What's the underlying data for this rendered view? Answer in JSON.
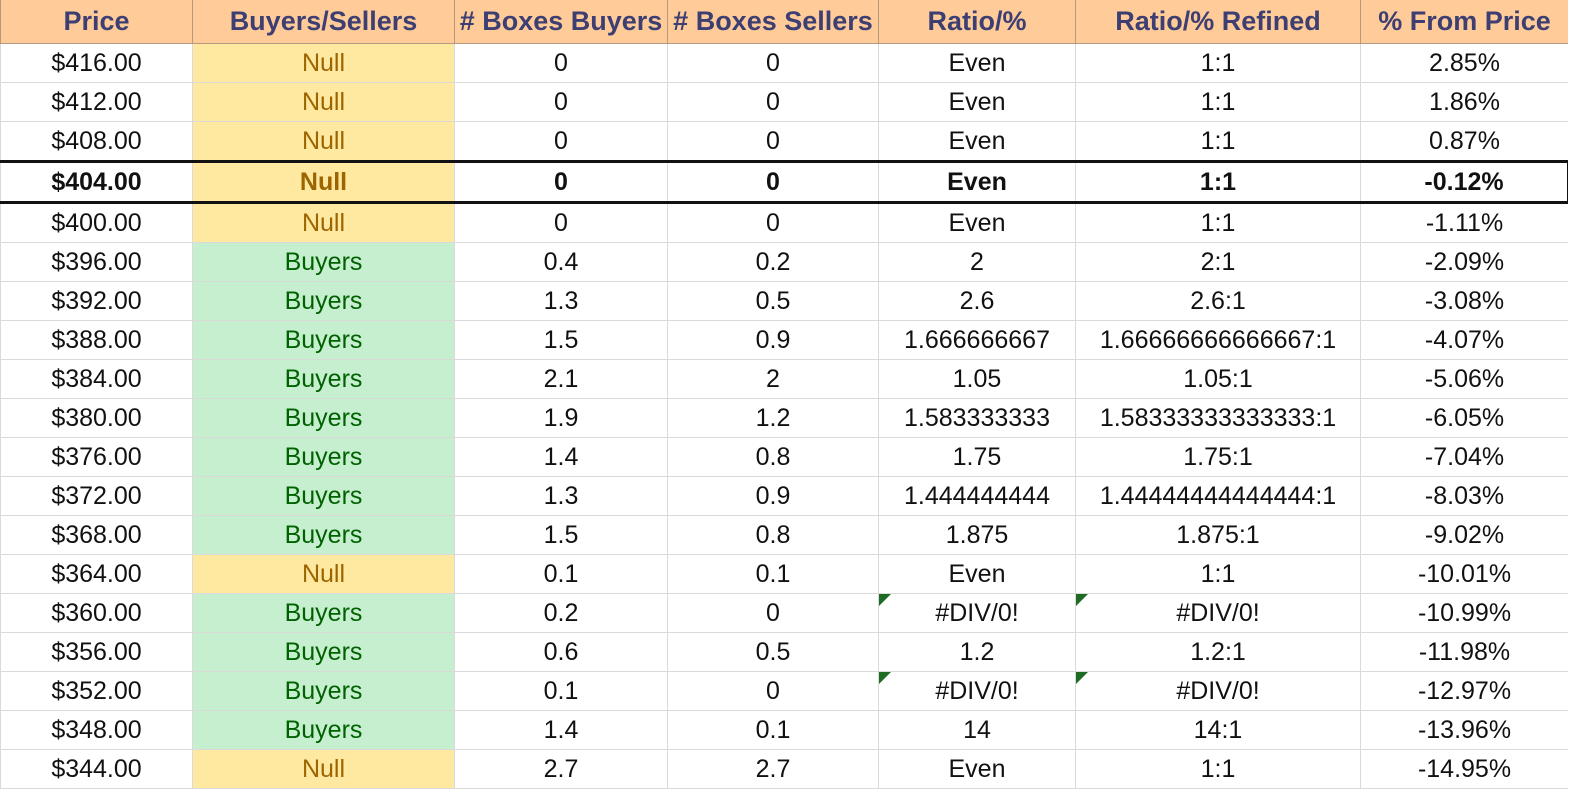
{
  "columns": [
    "Price",
    "Buyers/Sellers",
    "# Boxes Buyers",
    "# Boxes Sellers",
    "Ratio/%",
    "Ratio/% Refined",
    "% From Price"
  ],
  "colors": {
    "header_bg": "#ffcc99",
    "header_text": "#3d3f72",
    "null_bg": "#ffe8a0",
    "null_text": "#9c6500",
    "buyers_bg": "#c6efcf",
    "buyers_text": "#006100",
    "error_flag": "#1e6b24"
  },
  "current_price_row_index": 3,
  "rows": [
    {
      "price": "$416.00",
      "side": "Null",
      "boxes_buyers": "0",
      "boxes_sellers": "0",
      "ratio": "Even",
      "ratio_refined": "1:1",
      "pct": "2.85%"
    },
    {
      "price": "$412.00",
      "side": "Null",
      "boxes_buyers": "0",
      "boxes_sellers": "0",
      "ratio": "Even",
      "ratio_refined": "1:1",
      "pct": "1.86%"
    },
    {
      "price": "$408.00",
      "side": "Null",
      "boxes_buyers": "0",
      "boxes_sellers": "0",
      "ratio": "Even",
      "ratio_refined": "1:1",
      "pct": "0.87%"
    },
    {
      "price": "$404.00",
      "side": "Null",
      "boxes_buyers": "0",
      "boxes_sellers": "0",
      "ratio": "Even",
      "ratio_refined": "1:1",
      "pct": "-0.12%"
    },
    {
      "price": "$400.00",
      "side": "Null",
      "boxes_buyers": "0",
      "boxes_sellers": "0",
      "ratio": "Even",
      "ratio_refined": "1:1",
      "pct": "-1.11%"
    },
    {
      "price": "$396.00",
      "side": "Buyers",
      "boxes_buyers": "0.4",
      "boxes_sellers": "0.2",
      "ratio": "2",
      "ratio_refined": "2:1",
      "pct": "-2.09%"
    },
    {
      "price": "$392.00",
      "side": "Buyers",
      "boxes_buyers": "1.3",
      "boxes_sellers": "0.5",
      "ratio": "2.6",
      "ratio_refined": "2.6:1",
      "pct": "-3.08%"
    },
    {
      "price": "$388.00",
      "side": "Buyers",
      "boxes_buyers": "1.5",
      "boxes_sellers": "0.9",
      "ratio": "1.666666667",
      "ratio_refined": "1.66666666666667:1",
      "pct": "-4.07%"
    },
    {
      "price": "$384.00",
      "side": "Buyers",
      "boxes_buyers": "2.1",
      "boxes_sellers": "2",
      "ratio": "1.05",
      "ratio_refined": "1.05:1",
      "pct": "-5.06%"
    },
    {
      "price": "$380.00",
      "side": "Buyers",
      "boxes_buyers": "1.9",
      "boxes_sellers": "1.2",
      "ratio": "1.583333333",
      "ratio_refined": "1.58333333333333:1",
      "pct": "-6.05%"
    },
    {
      "price": "$376.00",
      "side": "Buyers",
      "boxes_buyers": "1.4",
      "boxes_sellers": "0.8",
      "ratio": "1.75",
      "ratio_refined": "1.75:1",
      "pct": "-7.04%"
    },
    {
      "price": "$372.00",
      "side": "Buyers",
      "boxes_buyers": "1.3",
      "boxes_sellers": "0.9",
      "ratio": "1.444444444",
      "ratio_refined": "1.44444444444444:1",
      "pct": "-8.03%"
    },
    {
      "price": "$368.00",
      "side": "Buyers",
      "boxes_buyers": "1.5",
      "boxes_sellers": "0.8",
      "ratio": "1.875",
      "ratio_refined": "1.875:1",
      "pct": "-9.02%"
    },
    {
      "price": "$364.00",
      "side": "Null",
      "boxes_buyers": "0.1",
      "boxes_sellers": "0.1",
      "ratio": "Even",
      "ratio_refined": "1:1",
      "pct": "-10.01%"
    },
    {
      "price": "$360.00",
      "side": "Buyers",
      "boxes_buyers": "0.2",
      "boxes_sellers": "0",
      "ratio": "#DIV/0!",
      "ratio_refined": "#DIV/0!",
      "pct": "-10.99%",
      "error": true
    },
    {
      "price": "$356.00",
      "side": "Buyers",
      "boxes_buyers": "0.6",
      "boxes_sellers": "0.5",
      "ratio": "1.2",
      "ratio_refined": "1.2:1",
      "pct": "-11.98%"
    },
    {
      "price": "$352.00",
      "side": "Buyers",
      "boxes_buyers": "0.1",
      "boxes_sellers": "0",
      "ratio": "#DIV/0!",
      "ratio_refined": "#DIV/0!",
      "pct": "-12.97%",
      "error": true
    },
    {
      "price": "$348.00",
      "side": "Buyers",
      "boxes_buyers": "1.4",
      "boxes_sellers": "0.1",
      "ratio": "14",
      "ratio_refined": "14:1",
      "pct": "-13.96%"
    },
    {
      "price": "$344.00",
      "side": "Null",
      "boxes_buyers": "2.7",
      "boxes_sellers": "2.7",
      "ratio": "Even",
      "ratio_refined": "1:1",
      "pct": "-14.95%"
    }
  ]
}
